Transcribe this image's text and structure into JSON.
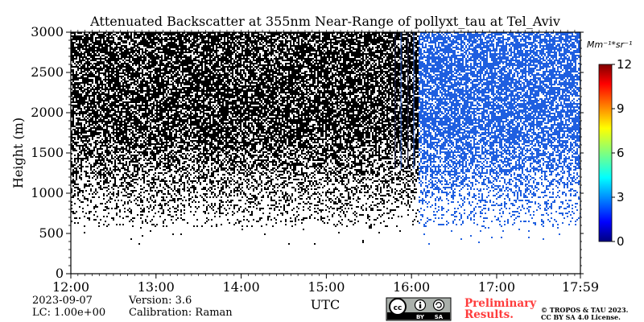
{
  "chart_data": {
    "type": "heatmap",
    "title": "Attenuated Backscatter at 355nm Near-Range of pollyxt_tau at Tel_Aviv",
    "xlabel": "UTC",
    "ylabel": "Height (m)",
    "xlim": [
      "12:00",
      "17:59"
    ],
    "ylim": [
      0,
      3000
    ],
    "x_ticks": [
      "12:00",
      "13:00",
      "14:00",
      "15:00",
      "16:00",
      "17:00",
      "17:59"
    ],
    "y_ticks": [
      0,
      500,
      1000,
      1500,
      2000,
      2500,
      3000
    ],
    "colorbar": {
      "unit_label": "Mm⁻¹*sr⁻¹",
      "range": [
        0,
        12
      ],
      "ticks": [
        0,
        3,
        6,
        9,
        12
      ],
      "colormap": "jet"
    },
    "regions": [
      {
        "time_start": "12:00",
        "time_end": "16:05",
        "signal": "saturated/noisy (black)"
      },
      {
        "time_start": "16:05",
        "time_end": "17:59",
        "signal": "low (blue, ~0.5)"
      }
    ],
    "noisy_below_height": 600,
    "grid": false
  },
  "footer": {
    "date": "2023-09-07",
    "lc": "LC: 1.00e+00",
    "version": "Version: 3.6",
    "calibration": "Calibration: Raman",
    "preliminary_line1": "Preliminary",
    "preliminary_line2": "Results.",
    "copyright_line1": "© TROPOS & TAU 2023.",
    "copyright_line2": "CC BY SA 4.0 License.",
    "license_badge_by": "BY",
    "license_badge_sa": "SA"
  },
  "colors": {
    "noise": "#000000",
    "low_signal": "#1f5fe0",
    "accent": "#ff3b3b"
  }
}
